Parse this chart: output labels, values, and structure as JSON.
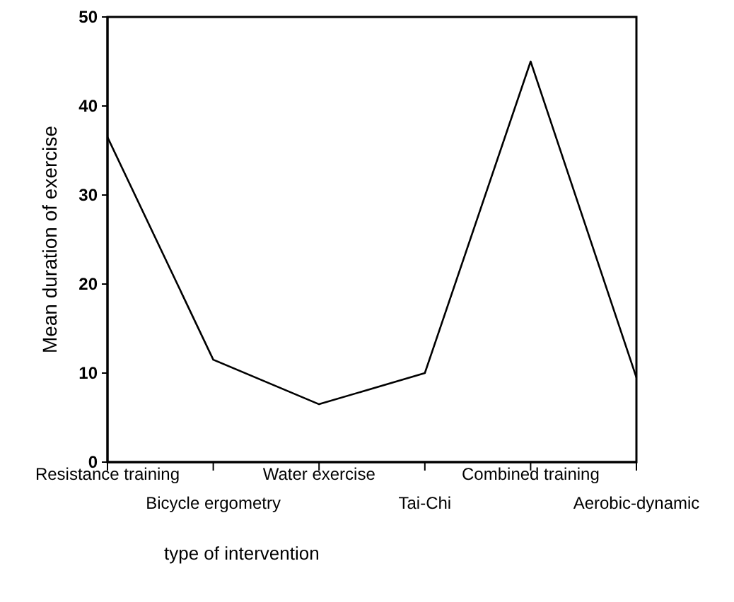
{
  "chart_data": {
    "type": "line",
    "xlabel": "type of intervention",
    "ylabel": "Mean duration of exercise",
    "categories": [
      "Resistance training",
      "Bicycle ergometry",
      "Water exercise",
      "Tai-Chi",
      "Combined training",
      "Aerobic-dynamic"
    ],
    "series": [
      {
        "color": "#000000",
        "values": [
          36.5,
          11.5,
          6.5,
          10,
          45,
          9.5
        ]
      }
    ],
    "ylim": [
      0,
      50
    ],
    "yticks": [
      0,
      10,
      20,
      30,
      40,
      50
    ],
    "marker": "none",
    "line_style": "solid"
  }
}
